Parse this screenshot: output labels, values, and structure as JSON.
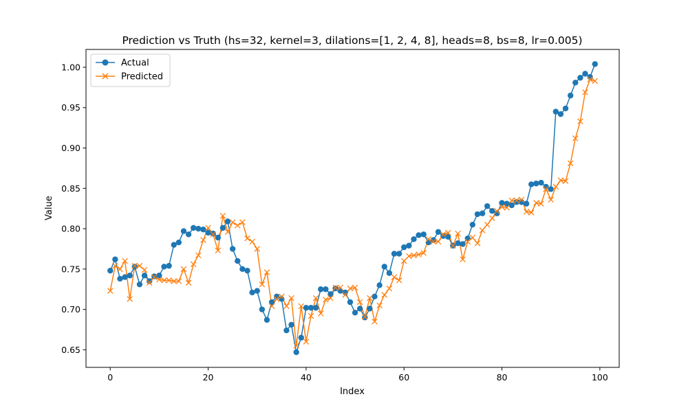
{
  "chart_data": {
    "type": "line",
    "title": "Prediction vs Truth (hs=32, kernel=3, dilations=[1, 2, 4, 8], heads=8, bs=8, lr=0.005)",
    "xlabel": "Index",
    "ylabel": "Value",
    "xlim": [
      -4.95,
      103.95
    ],
    "ylim": [
      0.6282,
      1.0221
    ],
    "xticks": [
      0,
      20,
      40,
      60,
      80,
      100
    ],
    "yticks": [
      0.65,
      0.7,
      0.75,
      0.8,
      0.85,
      0.9,
      0.95,
      1.0
    ],
    "ytick_labels": [
      "0.65",
      "0.70",
      "0.75",
      "0.80",
      "0.85",
      "0.90",
      "0.95",
      "1.00"
    ],
    "grid": false,
    "legend_position": "top-left",
    "series": [
      {
        "name": "Actual",
        "color": "#1f77b4",
        "marker": "circle",
        "values": [
          0.748,
          0.762,
          0.738,
          0.74,
          0.742,
          0.753,
          0.731,
          0.742,
          0.735,
          0.741,
          0.742,
          0.753,
          0.754,
          0.78,
          0.783,
          0.797,
          0.793,
          0.801,
          0.8,
          0.799,
          0.795,
          0.794,
          0.789,
          0.801,
          0.809,
          0.775,
          0.76,
          0.75,
          0.748,
          0.721,
          0.723,
          0.7,
          0.687,
          0.709,
          0.716,
          0.713,
          0.674,
          0.681,
          0.647,
          0.665,
          0.702,
          0.702,
          0.702,
          0.725,
          0.725,
          0.719,
          0.726,
          0.723,
          0.721,
          0.709,
          0.696,
          0.701,
          0.69,
          0.701,
          0.716,
          0.73,
          0.753,
          0.745,
          0.769,
          0.769,
          0.777,
          0.779,
          0.787,
          0.792,
          0.793,
          0.783,
          0.786,
          0.796,
          0.791,
          0.79,
          0.779,
          0.782,
          0.781,
          0.788,
          0.805,
          0.818,
          0.819,
          0.828,
          0.822,
          0.819,
          0.832,
          0.831,
          0.829,
          0.833,
          0.833,
          0.831,
          0.855,
          0.856,
          0.857,
          0.852,
          0.849,
          0.945,
          0.942,
          0.949,
          0.965,
          0.981,
          0.987,
          0.992,
          0.988,
          1.004
        ]
      },
      {
        "name": "Predicted",
        "color": "#ff7f0e",
        "marker": "x",
        "values": [
          0.723,
          0.754,
          0.75,
          0.76,
          0.713,
          0.754,
          0.754,
          0.749,
          0.733,
          0.74,
          0.737,
          0.736,
          0.736,
          0.735,
          0.735,
          0.75,
          0.733,
          0.756,
          0.767,
          0.786,
          0.801,
          0.793,
          0.773,
          0.816,
          0.796,
          0.808,
          0.804,
          0.808,
          0.788,
          0.784,
          0.775,
          0.731,
          0.746,
          0.704,
          0.713,
          0.716,
          0.704,
          0.714,
          0.655,
          0.704,
          0.66,
          0.692,
          0.714,
          0.695,
          0.712,
          0.714,
          0.727,
          0.727,
          0.718,
          0.726,
          0.727,
          0.709,
          0.691,
          0.714,
          0.685,
          0.705,
          0.718,
          0.726,
          0.74,
          0.736,
          0.76,
          0.766,
          0.767,
          0.768,
          0.77,
          0.787,
          0.784,
          0.784,
          0.793,
          0.795,
          0.779,
          0.794,
          0.762,
          0.784,
          0.789,
          0.782,
          0.798,
          0.805,
          0.813,
          0.822,
          0.827,
          0.826,
          0.835,
          0.835,
          0.836,
          0.821,
          0.82,
          0.832,
          0.831,
          0.849,
          0.836,
          0.852,
          0.86,
          0.859,
          0.881,
          0.912,
          0.933,
          0.969,
          0.985,
          0.983
        ]
      }
    ]
  }
}
